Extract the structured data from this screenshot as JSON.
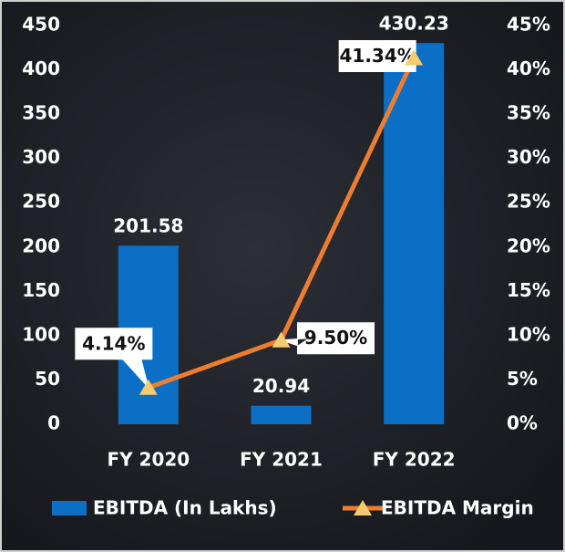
{
  "chart_data": {
    "type": "bar",
    "categories": [
      "FY 2020",
      "FY 2021",
      "FY 2022"
    ],
    "series": [
      {
        "name": "EBITDA (In Lakhs)",
        "type": "bar",
        "color": "#0b6fc6",
        "values": [
          201.58,
          20.94,
          430.23
        ],
        "value_labels": [
          "201.58",
          "20.94",
          "430.23"
        ]
      },
      {
        "name": "EBITDA Margin",
        "type": "line",
        "axis": "y2",
        "color": "#ed7d31",
        "marker_color": "#f7cc6e",
        "values": [
          4.14,
          9.5,
          41.34
        ],
        "value_labels": [
          "4.14%",
          "9.50%",
          "41.34%"
        ]
      }
    ],
    "ylim": [
      0,
      450
    ],
    "yticks": [
      0,
      50,
      100,
      150,
      200,
      250,
      300,
      350,
      400,
      450
    ],
    "y2lim": [
      0,
      45
    ],
    "y2ticks": [
      {
        "value": 0,
        "label": "0%"
      },
      {
        "value": 5,
        "label": "5%"
      },
      {
        "value": 10,
        "label": "10%"
      },
      {
        "value": 15,
        "label": "15%"
      },
      {
        "value": 20,
        "label": "20%"
      },
      {
        "value": 25,
        "label": "25%"
      },
      {
        "value": 30,
        "label": "30%"
      },
      {
        "value": 35,
        "label": "35%"
      },
      {
        "value": 40,
        "label": "40%"
      },
      {
        "value": 45,
        "label": "45%"
      }
    ],
    "grid": false,
    "legend": "bottom"
  }
}
